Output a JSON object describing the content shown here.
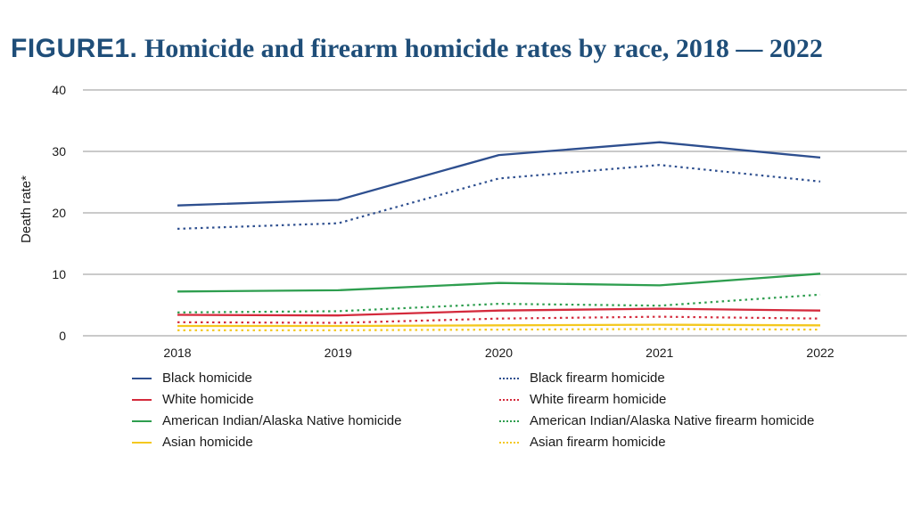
{
  "title": {
    "prefix": "FIGURE1.",
    "main": "Homicide and firearm homicide rates by race, 2018 — 2022"
  },
  "chart_data": {
    "type": "line",
    "title": "FIGURE1. Homicide and firearm homicide rates by race, 2018 — 2022",
    "xlabel": "",
    "ylabel": "Death rate*",
    "categories": [
      "2018",
      "2019",
      "2020",
      "2021",
      "2022"
    ],
    "ylim": [
      0,
      40
    ],
    "yticks": [
      0,
      10,
      20,
      30,
      40
    ],
    "grid": true,
    "legend_position": "bottom",
    "series": [
      {
        "name": "Black homicide",
        "values": [
          21.2,
          22.1,
          29.4,
          31.5,
          29.0
        ],
        "color": "#2e4f8f",
        "style": "solid"
      },
      {
        "name": "Black firearm homicide",
        "values": [
          17.4,
          18.3,
          25.6,
          27.8,
          25.1
        ],
        "color": "#2e4f8f",
        "style": "dotted"
      },
      {
        "name": "White homicide",
        "values": [
          3.4,
          3.3,
          4.1,
          4.4,
          4.1
        ],
        "color": "#d42a3c",
        "style": "solid"
      },
      {
        "name": "White firearm homicide",
        "values": [
          2.2,
          2.1,
          2.8,
          3.1,
          2.8
        ],
        "color": "#d42a3c",
        "style": "dotted"
      },
      {
        "name": "American Indian/Alaska Native homicide",
        "values": [
          7.2,
          7.4,
          8.6,
          8.2,
          10.1
        ],
        "color": "#2e9e4f",
        "style": "solid"
      },
      {
        "name": "American Indian/Alaska Native firearm homicide",
        "values": [
          3.8,
          4.0,
          5.2,
          4.9,
          6.7
        ],
        "color": "#2e9e4f",
        "style": "dotted"
      },
      {
        "name": "Asian homicide",
        "values": [
          1.6,
          1.6,
          1.7,
          1.8,
          1.7
        ],
        "color": "#f4c81f",
        "style": "solid"
      },
      {
        "name": "Asian firearm homicide",
        "values": [
          0.9,
          0.9,
          1.0,
          1.1,
          1.0
        ],
        "color": "#f4c81f",
        "style": "dotted"
      }
    ]
  }
}
